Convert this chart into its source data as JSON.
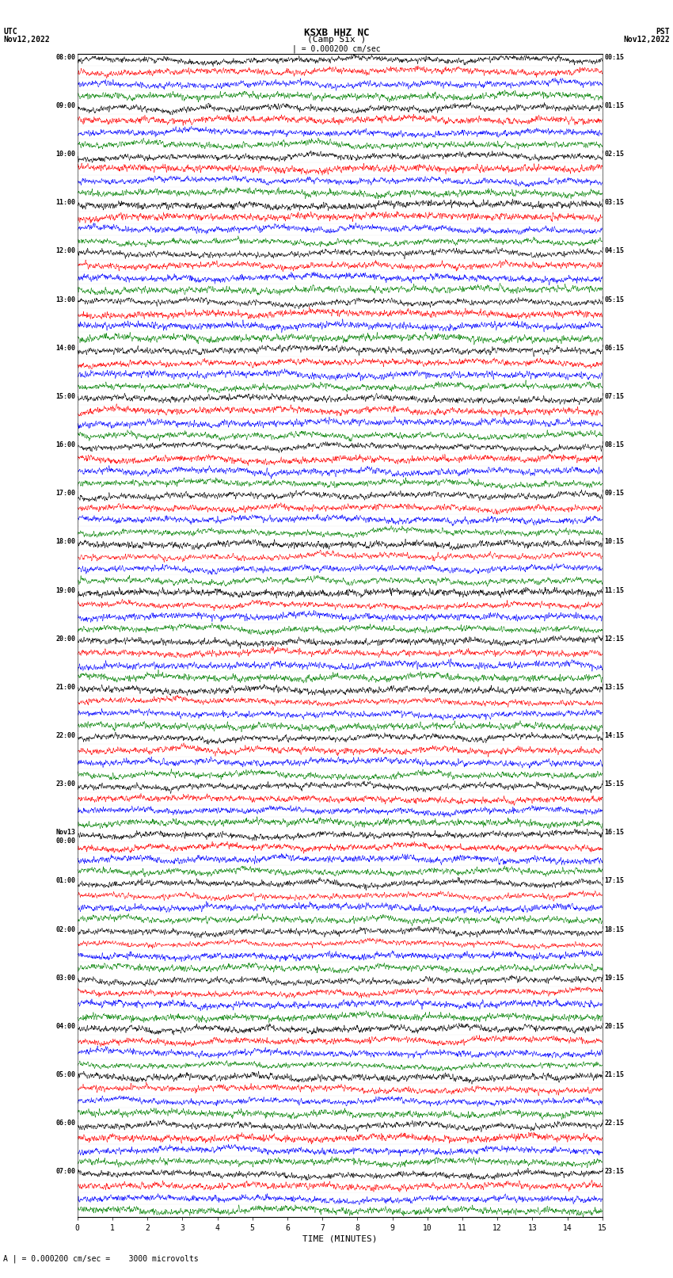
{
  "title_line1": "KSXB HHZ NC",
  "title_line2": "(Camp Six )",
  "scale_label": "| = 0.000200 cm/sec",
  "bottom_label": "A | = 0.000200 cm/sec =    3000 microvolts",
  "xlabel": "TIME (MINUTES)",
  "left_header": "UTC\nNov12,2022",
  "right_header": "PST\nNov12,2022",
  "utc_labels": [
    "08:00",
    "09:00",
    "10:00",
    "11:00",
    "12:00",
    "13:00",
    "14:00",
    "15:00",
    "16:00",
    "17:00",
    "18:00",
    "19:00",
    "20:00",
    "21:00",
    "22:00",
    "23:00",
    "Nov13\n00:00",
    "01:00",
    "02:00",
    "03:00",
    "04:00",
    "05:00",
    "06:00",
    "07:00"
  ],
  "pst_labels": [
    "00:15",
    "01:15",
    "02:15",
    "03:15",
    "04:15",
    "05:15",
    "06:15",
    "07:15",
    "08:15",
    "09:15",
    "10:15",
    "11:15",
    "12:15",
    "13:15",
    "14:15",
    "15:15",
    "16:15",
    "17:15",
    "18:15",
    "19:15",
    "20:15",
    "21:15",
    "22:15",
    "23:15"
  ],
  "num_rows": 24,
  "traces_per_row": 4,
  "colors": [
    "black",
    "red",
    "blue",
    "green"
  ],
  "bg_color": "white",
  "fig_width": 8.5,
  "fig_height": 16.13,
  "dpi": 100,
  "xmin": 0,
  "xmax": 15,
  "xticks": [
    0,
    1,
    2,
    3,
    4,
    5,
    6,
    7,
    8,
    9,
    10,
    11,
    12,
    13,
    14,
    15
  ],
  "seed": 42
}
